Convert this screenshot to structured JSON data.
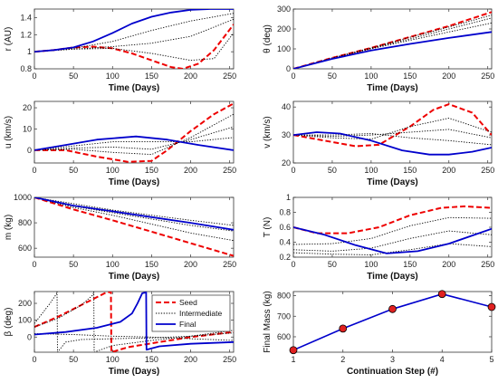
{
  "chart_data": [
    {
      "type": "line",
      "ylabel": "r (AU)",
      "xlabel": "Time (Days)",
      "xlim": [
        0,
        255
      ],
      "ylim": [
        0.8,
        1.5
      ],
      "xticks": [
        0,
        50,
        100,
        150,
        200,
        250
      ],
      "yticks": [
        0.8,
        1,
        1.2,
        1.4
      ],
      "series": [
        {
          "role": "seed",
          "x": [
            0,
            25,
            50,
            75,
            100,
            125,
            150,
            175,
            190,
            210,
            230,
            255
          ],
          "y": [
            1.0,
            1.02,
            1.05,
            1.06,
            1.04,
            0.98,
            0.9,
            0.82,
            0.8,
            0.86,
            1.02,
            1.32
          ]
        },
        {
          "role": "intermediate",
          "x": [
            0,
            50,
            100,
            150,
            200,
            230,
            255
          ],
          "y": [
            1.0,
            1.03,
            1.04,
            0.98,
            0.9,
            0.92,
            1.22
          ]
        },
        {
          "role": "intermediate",
          "x": [
            0,
            50,
            100,
            150,
            200,
            255
          ],
          "y": [
            1.0,
            1.03,
            1.06,
            1.1,
            1.18,
            1.38
          ]
        },
        {
          "role": "intermediate",
          "x": [
            0,
            50,
            100,
            150,
            200,
            255
          ],
          "y": [
            1.0,
            1.04,
            1.12,
            1.25,
            1.36,
            1.45
          ]
        },
        {
          "role": "final",
          "x": [
            0,
            25,
            50,
            75,
            100,
            125,
            150,
            175,
            200,
            225,
            255
          ],
          "y": [
            1.0,
            1.02,
            1.05,
            1.12,
            1.22,
            1.33,
            1.41,
            1.46,
            1.49,
            1.5,
            1.5
          ]
        }
      ]
    },
    {
      "type": "line",
      "ylabel": "θ (deg)",
      "xlabel": "Time (Days)",
      "xlim": [
        0,
        255
      ],
      "ylim": [
        0,
        300
      ],
      "xticks": [
        0,
        50,
        100,
        150,
        200,
        250
      ],
      "yticks": [
        0,
        100,
        200,
        300
      ],
      "series": [
        {
          "role": "seed",
          "x": [
            0,
            50,
            100,
            150,
            200,
            255
          ],
          "y": [
            0,
            55,
            105,
            160,
            215,
            285
          ]
        },
        {
          "role": "intermediate",
          "x": [
            0,
            50,
            100,
            150,
            200,
            255
          ],
          "y": [
            0,
            55,
            105,
            158,
            210,
            270
          ]
        },
        {
          "role": "intermediate",
          "x": [
            0,
            50,
            100,
            150,
            200,
            255
          ],
          "y": [
            0,
            54,
            103,
            150,
            200,
            255
          ]
        },
        {
          "role": "intermediate",
          "x": [
            0,
            50,
            100,
            150,
            200,
            255
          ],
          "y": [
            0,
            53,
            100,
            143,
            185,
            230
          ]
        },
        {
          "role": "final",
          "x": [
            0,
            50,
            100,
            150,
            200,
            255
          ],
          "y": [
            0,
            50,
            92,
            125,
            155,
            185
          ]
        }
      ]
    },
    {
      "type": "line",
      "ylabel": "u (km/s)",
      "xlabel": "Time (Days)",
      "xlim": [
        0,
        255
      ],
      "ylim": [
        -6,
        23
      ],
      "xticks": [
        0,
        50,
        100,
        150,
        200,
        250
      ],
      "yticks": [
        0,
        10,
        20
      ],
      "series": [
        {
          "role": "seed",
          "x": [
            0,
            40,
            80,
            120,
            150,
            170,
            200,
            230,
            255
          ],
          "y": [
            0,
            0,
            -3,
            -5.5,
            -5,
            0,
            9,
            17,
            22
          ]
        },
        {
          "role": "intermediate",
          "x": [
            0,
            50,
            100,
            150,
            200,
            255
          ],
          "y": [
            0,
            0.5,
            -1,
            -2,
            6,
            17
          ]
        },
        {
          "role": "intermediate",
          "x": [
            0,
            50,
            100,
            150,
            200,
            255
          ],
          "y": [
            0,
            1,
            1.5,
            0.5,
            5,
            11
          ]
        },
        {
          "role": "intermediate",
          "x": [
            0,
            50,
            100,
            150,
            200,
            255
          ],
          "y": [
            0,
            2,
            4,
            4,
            4,
            6
          ]
        },
        {
          "role": "final",
          "x": [
            0,
            40,
            80,
            130,
            170,
            210,
            255
          ],
          "y": [
            0,
            2.5,
            5,
            6.5,
            5,
            2.5,
            0
          ]
        }
      ]
    },
    {
      "type": "line",
      "ylabel": "v (km/s)",
      "xlabel": "Time (Days)",
      "xlim": [
        0,
        255
      ],
      "ylim": [
        20,
        42
      ],
      "xticks": [
        0,
        50,
        100,
        150,
        200,
        250
      ],
      "yticks": [
        20,
        30,
        40
      ],
      "series": [
        {
          "role": "seed",
          "x": [
            0,
            40,
            80,
            110,
            150,
            180,
            200,
            230,
            255
          ],
          "y": [
            30,
            28,
            26,
            26.5,
            33,
            39,
            41,
            38,
            30
          ]
        },
        {
          "role": "intermediate",
          "x": [
            0,
            50,
            100,
            150,
            200,
            255
          ],
          "y": [
            30,
            29,
            28.5,
            33,
            36,
            31
          ]
        },
        {
          "role": "intermediate",
          "x": [
            0,
            50,
            100,
            150,
            200,
            255
          ],
          "y": [
            30,
            29.5,
            30,
            31,
            32,
            29
          ]
        },
        {
          "role": "intermediate",
          "x": [
            0,
            50,
            100,
            150,
            200,
            255
          ],
          "y": [
            30,
            30,
            30.5,
            29,
            28,
            26.5
          ]
        },
        {
          "role": "final",
          "x": [
            0,
            30,
            60,
            100,
            140,
            175,
            200,
            230,
            255
          ],
          "y": [
            30,
            31,
            30.5,
            28,
            24.5,
            23,
            23,
            24,
            25.5
          ]
        }
      ]
    },
    {
      "type": "line",
      "ylabel": "m (kg)",
      "xlabel": "Time (Days)",
      "xlim": [
        0,
        255
      ],
      "ylim": [
        530,
        1000
      ],
      "xticks": [
        0,
        50,
        100,
        150,
        200,
        250
      ],
      "yticks": [
        600,
        800,
        1000
      ],
      "series": [
        {
          "role": "seed",
          "x": [
            0,
            50,
            100,
            150,
            200,
            255
          ],
          "y": [
            1000,
            905,
            820,
            730,
            640,
            540
          ]
        },
        {
          "role": "intermediate",
          "x": [
            0,
            50,
            100,
            150,
            200,
            255
          ],
          "y": [
            1000,
            920,
            860,
            790,
            720,
            660
          ]
        },
        {
          "role": "intermediate",
          "x": [
            0,
            50,
            100,
            150,
            200,
            255
          ],
          "y": [
            1000,
            930,
            880,
            830,
            780,
            735
          ]
        },
        {
          "role": "intermediate",
          "x": [
            0,
            50,
            100,
            150,
            200,
            255
          ],
          "y": [
            1000,
            950,
            900,
            860,
            820,
            780
          ]
        },
        {
          "role": "final",
          "x": [
            0,
            50,
            100,
            150,
            200,
            255
          ],
          "y": [
            1000,
            935,
            890,
            845,
            800,
            745
          ]
        }
      ]
    },
    {
      "type": "line",
      "ylabel": "T (N)",
      "xlabel": "Time (Days)",
      "xlim": [
        0,
        255
      ],
      "ylim": [
        0.2,
        1
      ],
      "xticks": [
        0,
        50,
        100,
        150,
        200,
        250
      ],
      "yticks": [
        0.2,
        0.4,
        0.6,
        0.8,
        1
      ],
      "series": [
        {
          "role": "seed",
          "x": [
            0,
            30,
            70,
            110,
            150,
            190,
            220,
            255
          ],
          "y": [
            0.6,
            0.52,
            0.52,
            0.6,
            0.76,
            0.86,
            0.88,
            0.86
          ]
        },
        {
          "role": "intermediate",
          "x": [
            0,
            50,
            100,
            150,
            200,
            255
          ],
          "y": [
            0.37,
            0.38,
            0.45,
            0.62,
            0.73,
            0.72
          ]
        },
        {
          "role": "intermediate",
          "x": [
            0,
            50,
            100,
            150,
            200,
            255
          ],
          "y": [
            0.3,
            0.28,
            0.32,
            0.45,
            0.55,
            0.5
          ]
        },
        {
          "role": "intermediate",
          "x": [
            0,
            50,
            100,
            150,
            200,
            255
          ],
          "y": [
            0.26,
            0.24,
            0.23,
            0.3,
            0.38,
            0.34
          ]
        },
        {
          "role": "final",
          "x": [
            0,
            40,
            80,
            120,
            160,
            200,
            255
          ],
          "y": [
            0.6,
            0.5,
            0.36,
            0.25,
            0.28,
            0.38,
            0.58
          ]
        }
      ]
    },
    {
      "type": "line",
      "ylabel": "β (deg)",
      "xlabel": "Time (Days)",
      "xlim": [
        0,
        255
      ],
      "ylim": [
        -90,
        270
      ],
      "xticks": [
        0,
        50,
        100,
        150,
        200,
        250
      ],
      "yticks": [
        0,
        100,
        200
      ],
      "legend": [
        "Seed",
        "Intermediate",
        "Final"
      ],
      "legend_position": "top-right",
      "series": [
        {
          "role": "seed",
          "x": [
            0,
            30,
            60,
            90,
            98,
            98.5,
            120,
            160,
            200,
            255
          ],
          "y": [
            60,
            120,
            190,
            260,
            270,
            -90,
            -60,
            -30,
            0,
            30
          ]
        },
        {
          "role": "intermediate",
          "x": [
            0,
            10,
            20,
            28,
            29,
            29.5,
            40,
            60,
            100,
            150,
            200,
            255
          ],
          "y": [
            80,
            140,
            200,
            255,
            270,
            -90,
            -30,
            -15,
            -10,
            -5,
            5,
            25
          ]
        },
        {
          "role": "intermediate",
          "x": [
            0,
            30,
            60,
            75,
            76,
            76.5,
            100,
            150,
            200,
            255
          ],
          "y": [
            60,
            110,
            190,
            250,
            270,
            -90,
            -50,
            -20,
            5,
            40
          ]
        },
        {
          "role": "intermediate",
          "x": [
            0,
            50,
            100,
            150,
            200,
            255
          ],
          "y": [
            20,
            15,
            5,
            0,
            -10,
            -20
          ]
        },
        {
          "role": "final",
          "x": [
            0,
            40,
            80,
            110,
            125,
            132,
            138,
            143,
            143.5,
            160,
            200,
            255
          ],
          "y": [
            15,
            30,
            55,
            90,
            140,
            200,
            260,
            265,
            -75,
            -55,
            -40,
            -30
          ]
        }
      ]
    },
    {
      "type": "line",
      "ylabel": "Final Mass (kg)",
      "xlabel": "Continuation Step (#)",
      "xlim": [
        1,
        5
      ],
      "ylim": [
        525,
        820
      ],
      "xticks": [
        1,
        2,
        3,
        4,
        5
      ],
      "yticks": [
        600,
        700,
        800
      ],
      "markers": true,
      "x": [
        1,
        2,
        3,
        4,
        5
      ],
      "y": [
        535,
        640,
        735,
        808,
        745
      ]
    }
  ],
  "legend": {
    "entries": [
      {
        "label": "Seed",
        "color": "#ee0000",
        "dash": "dashed"
      },
      {
        "label": "Intermediate",
        "color": "#000000",
        "dash": "dotted"
      },
      {
        "label": "Final",
        "color": "#0000cc",
        "dash": "solid"
      }
    ]
  },
  "colors": {
    "seed": "#ee0000",
    "intermediate": "#000000",
    "final": "#0000cc",
    "marker_fill": "#e02020",
    "marker_edge": "#000000"
  }
}
